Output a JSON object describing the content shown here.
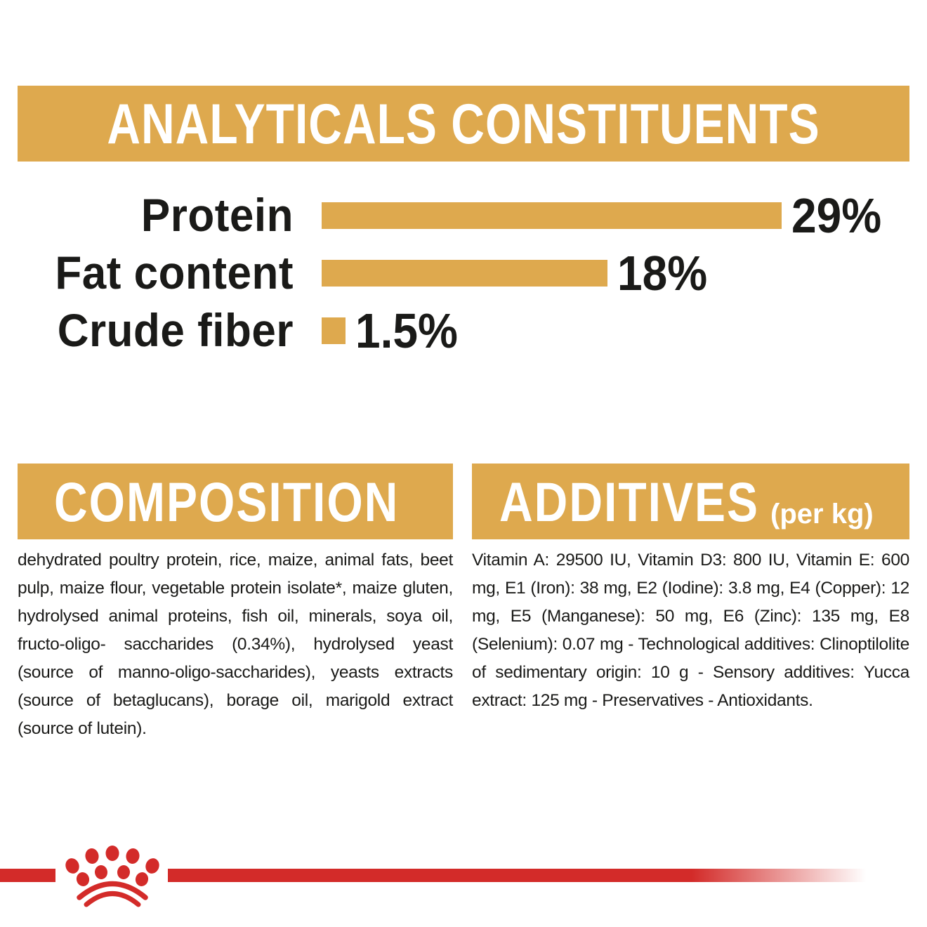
{
  "colors": {
    "gold": "#DEA94E",
    "red": "#D32B29",
    "ink": "#1A1A18",
    "title_text": "#FFFFFF",
    "background": "#FFFFFF"
  },
  "header": {
    "title": "ANALYTICALS CONSTITUENTS"
  },
  "chart_data": {
    "type": "bar",
    "orientation": "horizontal",
    "title": "ANALYTICALS CONSTITUENTS",
    "categories": [
      "Protein",
      "Fat content",
      "Crude fiber"
    ],
    "values": [
      29,
      18,
      1.5
    ],
    "value_labels": [
      "29%",
      "18%",
      "1.5%"
    ],
    "xlabel": "",
    "ylabel": "",
    "xlim": [
      0,
      29
    ],
    "grid": false,
    "legend": false,
    "bar_color": "#DEA94E",
    "value_label_position": "right-of-bar"
  },
  "sections": {
    "composition": {
      "title": "COMPOSITION",
      "body": "dehydrated poultry protein, rice, maize, animal fats, beet pulp, maize flour, vegetable protein isolate*, maize gluten, hydrolysed animal proteins, fish oil, minerals, soya oil, fructo-oligo- saccharides (0.34%), hydrolysed yeast (source of manno-oligo-saccharides), yeasts extracts (source of betaglucans), borage oil, marigold extract (source of lutein)."
    },
    "additives": {
      "title": "ADDITIVES",
      "title_suffix": "(per kg)",
      "body": "Vitamin A: 29500 IU, Vitamin D3: 800 IU, Vitamin E: 600 mg, E1 (Iron): 38 mg, E2 (Iodine): 3.8 mg, E4 (Copper): 12 mg, E5 (Manganese): 50 mg, E6 (Zinc): 135 mg, E8 (Selenium): 0.07 mg - Technological additives: Clinoptilolite of sedimentary origin: 10 g - Sensory additives: Yucca extract: 125 mg - Preservatives - Antioxidants."
    }
  },
  "footer": {
    "logo": "royal-canin-crown"
  }
}
